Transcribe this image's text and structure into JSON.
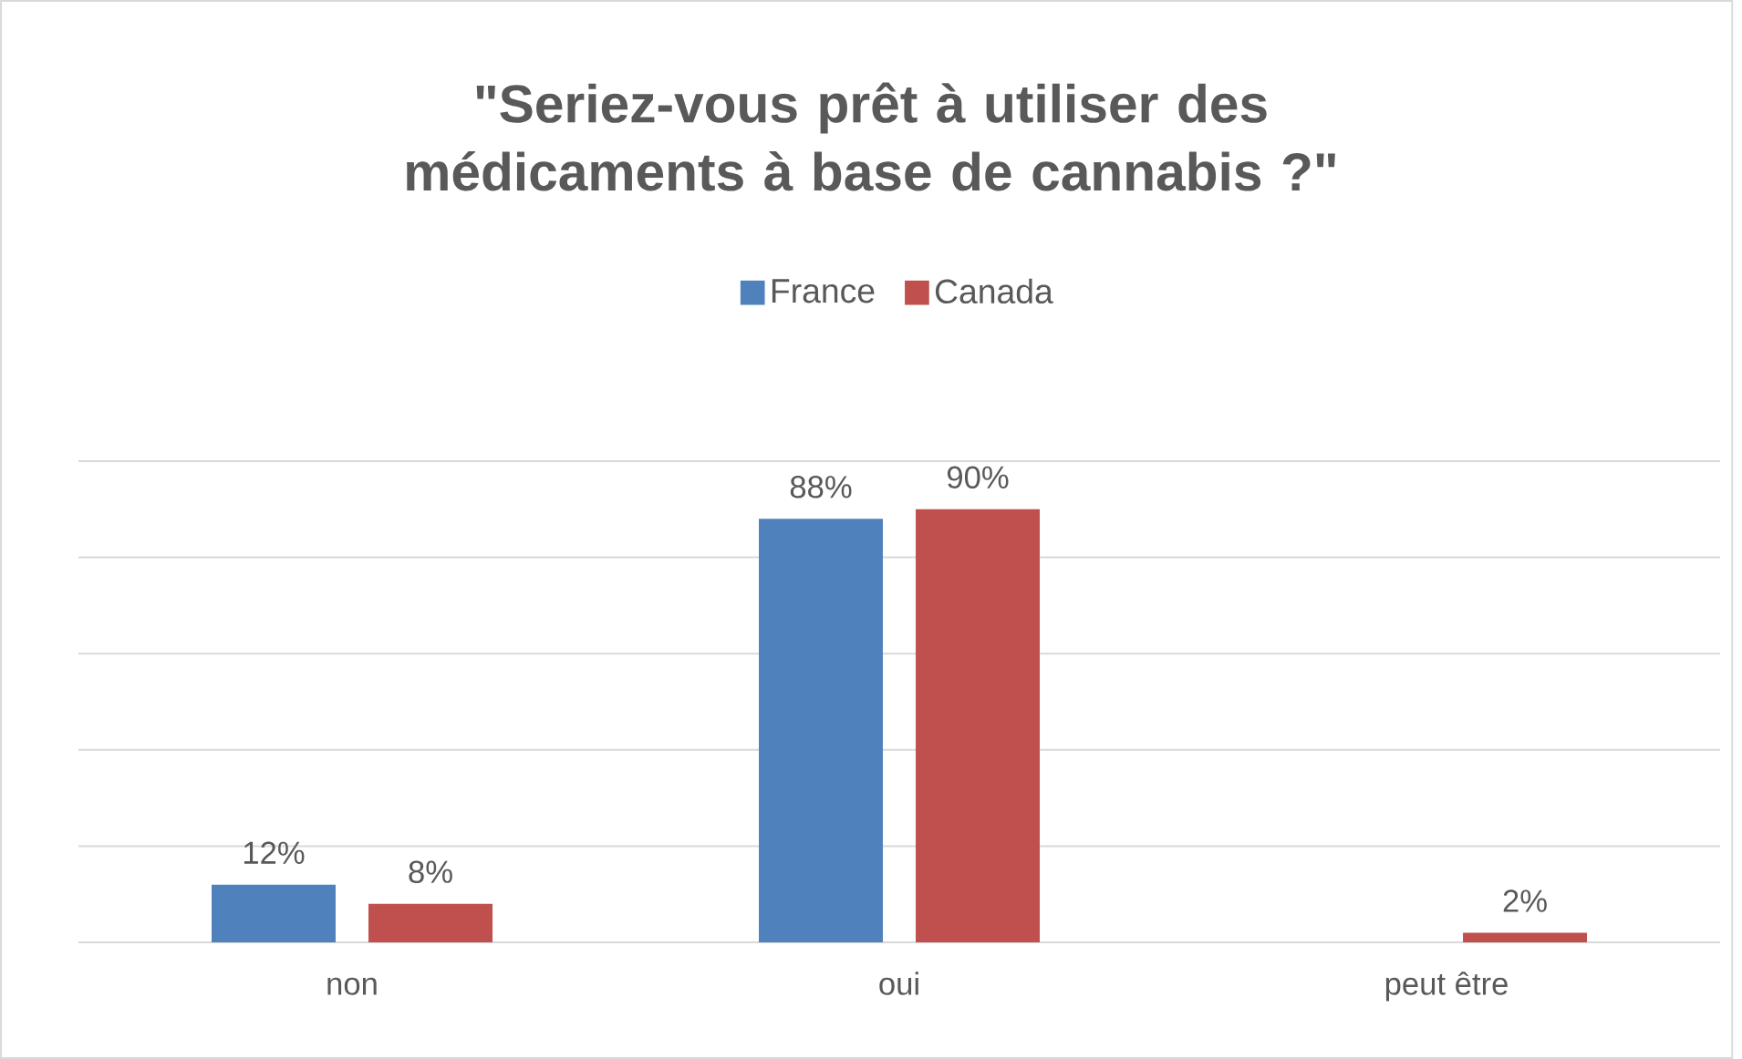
{
  "chart_data": {
    "type": "bar",
    "title": "\"Seriez-vous prêt à utiliser des médicaments à base de cannabis ?\"",
    "categories": [
      "non",
      "oui",
      "peut être"
    ],
    "series": [
      {
        "name": "France",
        "color": "#4f81bd",
        "values": [
          12,
          88,
          null
        ],
        "value_labels": [
          "12%",
          "88%",
          null
        ]
      },
      {
        "name": "Canada",
        "color": "#c0504d",
        "values": [
          8,
          90,
          2
        ],
        "value_labels": [
          "8%",
          "90%",
          "2%"
        ]
      }
    ],
    "ylim": [
      0,
      100
    ],
    "yticks": [
      {
        "value": 0,
        "label": null
      },
      {
        "value": 20,
        "label": null
      },
      {
        "value": 40,
        "label": null
      },
      {
        "value": 60,
        "label": null
      },
      {
        "value": 80,
        "label": null
      },
      {
        "value": 100,
        "label": null
      }
    ],
    "tick_labels": "x",
    "grid": "y",
    "legend": "top"
  }
}
